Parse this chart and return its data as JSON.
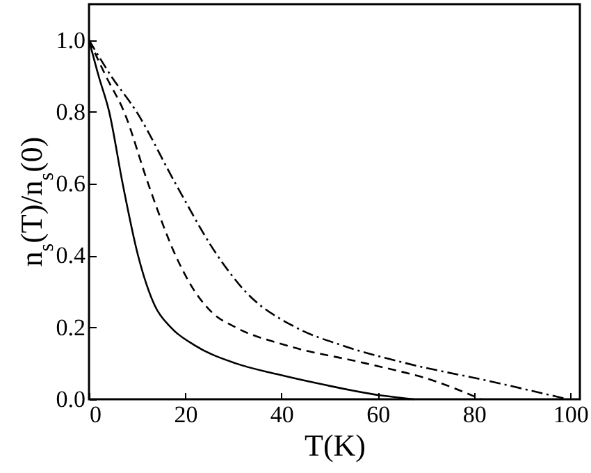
{
  "chart_data": {
    "type": "line",
    "xlabel": "T(K)",
    "ylabel": "n$_{s}$(T)/n$_{s}$(0)",
    "xlim": [
      0,
      102
    ],
    "ylim": [
      0,
      1.1
    ],
    "xticks": [
      0,
      20,
      40,
      60,
      80,
      100
    ],
    "yticks": [
      {
        "value": 0,
        "label": "0.0"
      },
      0.2,
      0.4,
      0.6,
      0.8,
      {
        "value": 1,
        "label": "1.0"
      }
    ],
    "grid": false,
    "series": [
      {
        "color": "#000000",
        "line_style": "solid",
        "x": [
          0,
          2,
          4.2,
          7,
          10.2,
          13.7,
          17,
          22,
          30.5,
          39,
          49,
          61,
          67.5
        ],
        "values": [
          1.0,
          0.9,
          0.8,
          0.6,
          0.4,
          0.26,
          0.2,
          0.15,
          0.1,
          0.07,
          0.04,
          0.01,
          0
        ]
      },
      {
        "color": "#000000",
        "line_style": "dashed",
        "x": [
          0,
          3.5,
          7.3,
          12.3,
          18,
          22,
          25.7,
          30.5,
          41,
          57.5,
          72,
          81.5
        ],
        "values": [
          1.0,
          0.9,
          0.8,
          0.6,
          0.4,
          0.3,
          0.24,
          0.2,
          0.15,
          0.1,
          0.05,
          0
        ]
      },
      {
        "color": "#000000",
        "line_style": "dashdot",
        "x": [
          0,
          4.6,
          9.9,
          18,
          26.7,
          32.5,
          43,
          52.6,
          66,
          83.4,
          99.5
        ],
        "values": [
          1.0,
          0.9,
          0.8,
          0.6,
          0.4,
          0.3,
          0.2,
          0.15,
          0.1,
          0.05,
          0
        ]
      }
    ]
  }
}
